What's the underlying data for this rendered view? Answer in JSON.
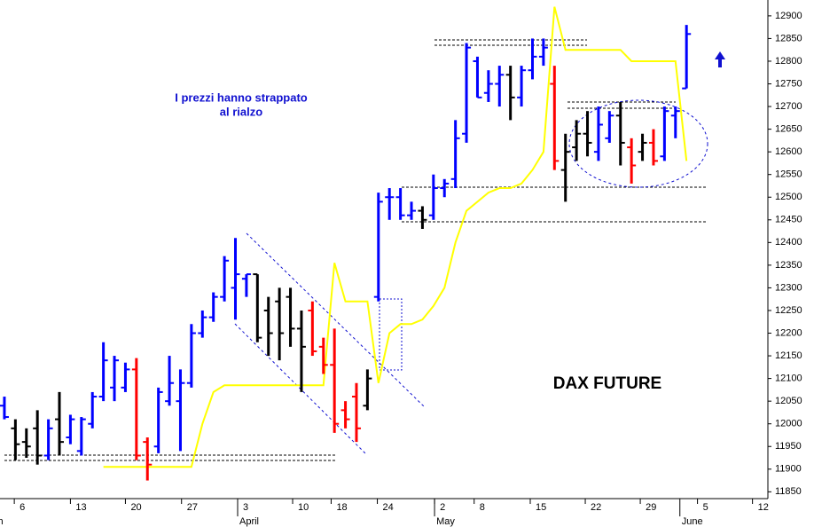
{
  "chart_data": {
    "type": "ohlc",
    "open": [
      12040,
      11990,
      11960,
      11990,
      11930,
      12010,
      11970,
      11940,
      12000,
      12060,
      12080,
      12080,
      12120,
      11960,
      11950,
      12050,
      12050,
      12090,
      12200,
      12235,
      12280,
      12300,
      12320,
      12330,
      12250,
      12270,
      12280,
      12210,
      12250,
      12170,
      12130,
      12030,
      12060,
      12040,
      12280,
      12500,
      12500,
      12460,
      12470,
      12460,
      12520,
      12540,
      12640,
      12800,
      12730,
      12750,
      12770,
      12720,
      12780,
      12810,
      12750,
      12560,
      12610,
      12640,
      12600,
      12630,
      12680,
      12610,
      12600,
      12620,
      12590,
      12680,
      12740
    ],
    "high": [
      12060,
      12010,
      11990,
      12030,
      12010,
      12070,
      12020,
      12015,
      12070,
      12180,
      12150,
      12135,
      12145,
      11970,
      12080,
      12150,
      12120,
      12220,
      12250,
      12290,
      12370,
      12410,
      12330,
      12330,
      12280,
      12300,
      12300,
      12250,
      12270,
      12190,
      12210,
      12050,
      12090,
      12120,
      12510,
      12520,
      12520,
      12490,
      12480,
      12550,
      12540,
      12670,
      12840,
      12810,
      12780,
      12790,
      12790,
      12790,
      12850,
      12850,
      12790,
      12640,
      12670,
      12690,
      12700,
      12690,
      12710,
      12630,
      12640,
      12650,
      12700,
      12700,
      12880
    ],
    "low": [
      12010,
      11920,
      11925,
      11910,
      11920,
      11930,
      11955,
      11930,
      11990,
      12050,
      12050,
      12070,
      11920,
      11875,
      11935,
      12040,
      11940,
      12080,
      12190,
      12225,
      12270,
      12230,
      12280,
      12180,
      12150,
      12140,
      12170,
      12070,
      12150,
      12110,
      11980,
      11990,
      11960,
      12030,
      12270,
      12450,
      12450,
      12450,
      12430,
      12450,
      12500,
      12520,
      12620,
      12720,
      12710,
      12700,
      12670,
      12700,
      12760,
      12790,
      12560,
      12490,
      12580,
      12590,
      12580,
      12620,
      12570,
      12530,
      12580,
      12570,
      12580,
      12630,
      12740
    ],
    "close": [
      12015,
      11955,
      11950,
      11930,
      11990,
      11960,
      12010,
      12010,
      12060,
      12140,
      12140,
      12120,
      11930,
      11910,
      12070,
      12090,
      12090,
      12200,
      12235,
      12280,
      12360,
      12330,
      12330,
      12190,
      12200,
      12200,
      12210,
      12170,
      12160,
      12130,
      12000,
      12010,
      11990,
      12100,
      12490,
      12500,
      12460,
      12470,
      12450,
      12520,
      12530,
      12630,
      12830,
      12720,
      12750,
      12770,
      12720,
      12780,
      12810,
      12830,
      12580,
      12600,
      12640,
      12620,
      12660,
      12680,
      12620,
      12570,
      12620,
      12580,
      12690,
      12690,
      12860
    ],
    "colors": [
      "#0000ff",
      "#000000",
      "#000000",
      "#000000",
      "#0000ff",
      "#000000",
      "#0000ff",
      "#0000ff",
      "#0000ff",
      "#0000ff",
      "#0000ff",
      "#0000ff",
      "#ff0000",
      "#ff0000",
      "#0000ff",
      "#0000ff",
      "#0000ff",
      "#0000ff",
      "#0000ff",
      "#0000ff",
      "#0000ff",
      "#0000ff",
      "#0000ff",
      "#000000",
      "#000000",
      "#000000",
      "#000000",
      "#000000",
      "#ff0000",
      "#ff0000",
      "#ff0000",
      "#ff0000",
      "#ff0000",
      "#000000",
      "#0000ff",
      "#0000ff",
      "#0000ff",
      "#0000ff",
      "#000000",
      "#0000ff",
      "#0000ff",
      "#0000ff",
      "#0000ff",
      "#0000ff",
      "#0000ff",
      "#0000ff",
      "#000000",
      "#0000ff",
      "#0000ff",
      "#0000ff",
      "#ff0000",
      "#000000",
      "#000000",
      "#000000",
      "#0000ff",
      "#0000ff",
      "#000000",
      "#ff0000",
      "#000000",
      "#ff0000",
      "#0000ff",
      "#0000ff",
      "#0000ff"
    ],
    "line": {
      "color": "#ffff00",
      "values": [
        null,
        null,
        null,
        null,
        null,
        null,
        null,
        null,
        null,
        11905,
        11905,
        11905,
        11905,
        11905,
        11905,
        11905,
        11905,
        11905,
        12000,
        12070,
        12085,
        12085,
        12085,
        12085,
        12085,
        12085,
        12085,
        12085,
        12085,
        12085,
        12355,
        12270,
        12270,
        12270,
        12090,
        12200,
        12220,
        12220,
        12230,
        12260,
        12300,
        12400,
        12470,
        12490,
        12510,
        12520,
        12520,
        12530,
        12560,
        12600,
        12920,
        12825,
        12825,
        12825,
        12825,
        12825,
        12825,
        12800,
        12800,
        12800,
        12800,
        12800,
        12580
      ]
    },
    "xlim": [
      -0.4,
      69.4
    ],
    "xticks": [
      {
        "value": 0.9,
        "label": "6"
      },
      {
        "value": 6,
        "label": "13"
      },
      {
        "value": 11,
        "label": "20"
      },
      {
        "value": 16.1,
        "label": "27"
      },
      {
        "value": 21.2,
        "label": "3"
      },
      {
        "value": 26.2,
        "label": "10"
      },
      {
        "value": 29.7,
        "label": "18"
      },
      {
        "value": 33.9,
        "label": "24"
      },
      {
        "value": 39.1,
        "label": "2"
      },
      {
        "value": 42.7,
        "label": "8"
      },
      {
        "value": 47.8,
        "label": "15"
      },
      {
        "value": 52.8,
        "label": "22"
      },
      {
        "value": 57.8,
        "label": "29"
      },
      {
        "value": 63,
        "label": "5"
      },
      {
        "value": 68,
        "label": "12"
      }
    ],
    "month_ticks": [
      {
        "value": -1.5,
        "label": "rch"
      },
      {
        "value": 21.2,
        "label": "April"
      },
      {
        "value": 39.1,
        "label": "May"
      },
      {
        "value": 61.4,
        "label": "June"
      }
    ],
    "ylim": [
      11835,
      12935
    ],
    "yticks": [
      11850,
      11900,
      11950,
      12000,
      12050,
      12100,
      12150,
      12200,
      12250,
      12300,
      12350,
      12400,
      12450,
      12500,
      12550,
      12600,
      12650,
      12700,
      12750,
      12800,
      12850,
      12900
    ],
    "annotation_lines": [
      "I prezzi hanno strappato",
      "al rialzo"
    ],
    "label": "DAX FUTURE"
  }
}
